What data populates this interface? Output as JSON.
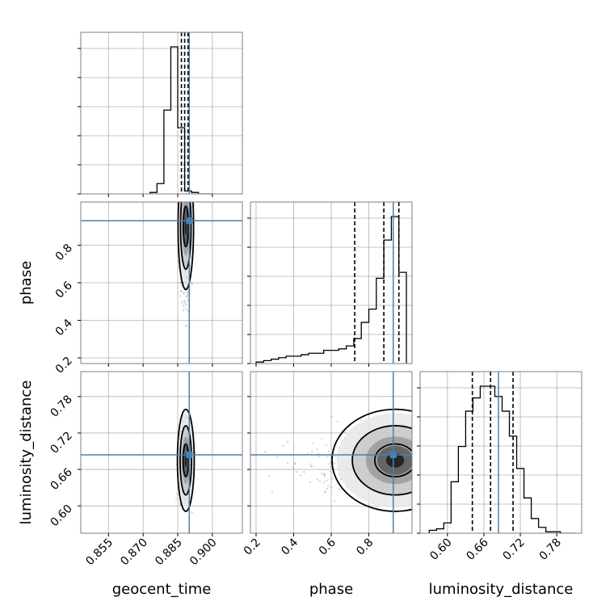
{
  "chart_data": {
    "type": "corner",
    "parameters": [
      "geocent_time",
      "phase",
      "luminosity_distance"
    ],
    "truths": {
      "geocent_time": 0.89,
      "phase": 0.93,
      "luminosity_distance": 0.684
    },
    "quantiles": {
      "geocent_time": [
        0.8866,
        0.888,
        0.8895
      ],
      "phase": [
        0.725,
        0.88,
        0.96
      ],
      "luminosity_distance": [
        0.641,
        0.671,
        0.708
      ]
    },
    "ranges": {
      "geocent_time": [
        0.843,
        0.913
      ],
      "phase": [
        0.17,
        1.03
      ],
      "luminosity_distance": [
        0.555,
        0.821
      ]
    },
    "ticks": {
      "geocent_time": [
        "0.855",
        "0.870",
        "0.885",
        "0.900"
      ],
      "phase": [
        "0.2",
        "0.4",
        "0.6",
        "0.8"
      ],
      "luminosity_distance": [
        "0.60",
        "0.66",
        "0.72",
        "0.78"
      ]
    },
    "histograms": {
      "geocent_time": {
        "edges": [
          0.873,
          0.876,
          0.879,
          0.882,
          0.885,
          0.888,
          0.891,
          0.894,
          0.897,
          0.9
        ],
        "counts": [
          0.01,
          0.07,
          0.57,
          1.0,
          0.45,
          0.02,
          0.01,
          0,
          0
        ]
      },
      "phase": {
        "edges": [
          0.2,
          0.24,
          0.28,
          0.32,
          0.36,
          0.4,
          0.44,
          0.48,
          0.52,
          0.56,
          0.6,
          0.64,
          0.68,
          0.72,
          0.76,
          0.8,
          0.84,
          0.88,
          0.92,
          0.96,
          1.0
        ],
        "counts": [
          0.01,
          0.02,
          0.03,
          0.04,
          0.05,
          0.05,
          0.06,
          0.07,
          0.07,
          0.09,
          0.09,
          0.1,
          0.12,
          0.17,
          0.28,
          0.37,
          0.58,
          0.84,
          1.0,
          0.62
        ]
      },
      "luminosity_distance": {
        "edges": [
          0.57,
          0.582,
          0.594,
          0.606,
          0.618,
          0.63,
          0.642,
          0.654,
          0.666,
          0.678,
          0.69,
          0.702,
          0.714,
          0.726,
          0.738,
          0.75,
          0.762,
          0.774,
          0.786,
          0.798,
          0.81
        ],
        "counts": [
          0.02,
          0.03,
          0.07,
          0.35,
          0.59,
          0.83,
          0.92,
          1.0,
          1.0,
          0.93,
          0.83,
          0.66,
          0.44,
          0.24,
          0.1,
          0.04,
          0.01,
          0.01,
          0,
          0
        ]
      }
    },
    "grid": true,
    "contour_levels": [
      0.39,
      0.86,
      0.99
    ]
  }
}
